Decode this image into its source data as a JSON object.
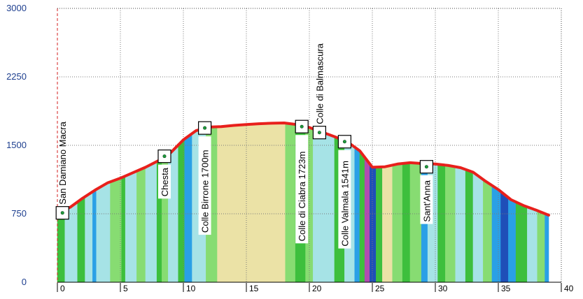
{
  "chart_data": {
    "type": "area",
    "title": "",
    "xlabel": "",
    "ylabel": "",
    "xlim": [
      0,
      40
    ],
    "ylim": [
      0,
      3000
    ],
    "x_ticks": [
      0,
      5,
      10,
      15,
      20,
      25,
      30,
      35,
      40
    ],
    "y_ticks": [
      0,
      750,
      1500,
      2250,
      3000
    ],
    "grid": true,
    "start_marker_x": 0,
    "series": [
      {
        "line_color": "#e8201c",
        "x": [
          0,
          1,
          2,
          3,
          4,
          5,
          6,
          7,
          8,
          9,
          10,
          11,
          12,
          13,
          14,
          15,
          16,
          17,
          18,
          19,
          20,
          21,
          22,
          23,
          24,
          25,
          26,
          27,
          28,
          29,
          30,
          31,
          32,
          33,
          34,
          35,
          36,
          37,
          38,
          39
        ],
        "y": [
          760,
          820,
          920,
          1010,
          1090,
          1140,
          1200,
          1260,
          1330,
          1420,
          1560,
          1660,
          1700,
          1705,
          1718,
          1728,
          1736,
          1742,
          1745,
          1728,
          1695,
          1645,
          1595,
          1540,
          1440,
          1260,
          1265,
          1295,
          1310,
          1300,
          1295,
          1280,
          1255,
          1205,
          1105,
          1015,
          905,
          840,
          790,
          735
        ]
      }
    ],
    "fill_segments": [
      {
        "from": 0,
        "to": 0.6,
        "color": "#3dbf3d"
      },
      {
        "from": 0.6,
        "to": 1.6,
        "color": "#a6e3e6"
      },
      {
        "from": 1.6,
        "to": 2.2,
        "color": "#3dbf3d"
      },
      {
        "from": 2.2,
        "to": 2.8,
        "color": "#a6e3e6"
      },
      {
        "from": 2.8,
        "to": 3.1,
        "color": "#2aa0e6"
      },
      {
        "from": 3.1,
        "to": 4.2,
        "color": "#a6e3e6"
      },
      {
        "from": 4.2,
        "to": 5.1,
        "color": "#87dc72"
      },
      {
        "from": 5.1,
        "to": 5.4,
        "color": "#3dbf3d"
      },
      {
        "from": 5.4,
        "to": 6.3,
        "color": "#a6e3e6"
      },
      {
        "from": 6.3,
        "to": 7.0,
        "color": "#87dc72"
      },
      {
        "from": 7.0,
        "to": 7.9,
        "color": "#a6e3e6"
      },
      {
        "from": 7.9,
        "to": 8.3,
        "color": "#3dbf3d"
      },
      {
        "from": 8.3,
        "to": 8.8,
        "color": "#87dc72"
      },
      {
        "from": 8.8,
        "to": 9.6,
        "color": "#a6e3e6"
      },
      {
        "from": 9.6,
        "to": 10.1,
        "color": "#3dbf3d"
      },
      {
        "from": 10.1,
        "to": 10.7,
        "color": "#2aa0e6"
      },
      {
        "from": 10.7,
        "to": 11.8,
        "color": "#a6e3e6"
      },
      {
        "from": 11.8,
        "to": 12.7,
        "color": "#87dc72"
      },
      {
        "from": 12.7,
        "to": 18.1,
        "color": "#ebe2a6"
      },
      {
        "from": 18.1,
        "to": 18.9,
        "color": "#87dc72"
      },
      {
        "from": 18.9,
        "to": 19.7,
        "color": "#3dbf3d"
      },
      {
        "from": 19.7,
        "to": 20.3,
        "color": "#87dc72"
      },
      {
        "from": 20.3,
        "to": 22.0,
        "color": "#a6e3e6"
      },
      {
        "from": 22.0,
        "to": 22.8,
        "color": "#3dbf3d"
      },
      {
        "from": 22.8,
        "to": 23.6,
        "color": "#a6e3e6"
      },
      {
        "from": 23.6,
        "to": 24.0,
        "color": "#2aa0e6"
      },
      {
        "from": 24.0,
        "to": 24.4,
        "color": "#3dbf3d"
      },
      {
        "from": 24.4,
        "to": 24.8,
        "color": "#b04cb0"
      },
      {
        "from": 24.8,
        "to": 25.3,
        "color": "#1f4fb8"
      },
      {
        "from": 25.3,
        "to": 25.8,
        "color": "#3dbf3d"
      },
      {
        "from": 25.8,
        "to": 26.6,
        "color": "#ebe2a6"
      },
      {
        "from": 26.6,
        "to": 27.4,
        "color": "#87dc72"
      },
      {
        "from": 27.4,
        "to": 28.0,
        "color": "#3dbf3d"
      },
      {
        "from": 28.0,
        "to": 28.9,
        "color": "#87dc72"
      },
      {
        "from": 28.9,
        "to": 29.4,
        "color": "#2aa0e6"
      },
      {
        "from": 29.4,
        "to": 30.2,
        "color": "#a6e3e6"
      },
      {
        "from": 30.2,
        "to": 30.8,
        "color": "#3dbf3d"
      },
      {
        "from": 30.8,
        "to": 31.6,
        "color": "#87dc72"
      },
      {
        "from": 31.6,
        "to": 32.4,
        "color": "#a6e3e6"
      },
      {
        "from": 32.4,
        "to": 33.0,
        "color": "#3dbf3d"
      },
      {
        "from": 33.0,
        "to": 33.8,
        "color": "#a6e3e6"
      },
      {
        "from": 33.8,
        "to": 34.5,
        "color": "#87dc72"
      },
      {
        "from": 34.5,
        "to": 35.2,
        "color": "#2aa0e6"
      },
      {
        "from": 35.2,
        "to": 35.8,
        "color": "#1f4fb8"
      },
      {
        "from": 35.8,
        "to": 36.4,
        "color": "#2aa0e6"
      },
      {
        "from": 36.4,
        "to": 37.3,
        "color": "#3dbf3d"
      },
      {
        "from": 37.3,
        "to": 38.1,
        "color": "#a6e3e6"
      },
      {
        "from": 38.1,
        "to": 38.7,
        "color": "#87dc72"
      },
      {
        "from": 38.7,
        "to": 39.0,
        "color": "#2aa0e6"
      }
    ],
    "waypoints": [
      {
        "x": 0.4,
        "y": 760,
        "label": "San Damiano Macra",
        "placement": "above"
      },
      {
        "x": 8.5,
        "y": 1380,
        "label": "Chesta",
        "placement": "below"
      },
      {
        "x": 11.7,
        "y": 1690,
        "label": "Colle Birrone 1700m",
        "placement": "below"
      },
      {
        "x": 19.4,
        "y": 1705,
        "label": "Colle di Ciabra 1723m",
        "placement": "below"
      },
      {
        "x": 20.8,
        "y": 1640,
        "label": "Colle di Balmascura",
        "placement": "above"
      },
      {
        "x": 22.8,
        "y": 1540,
        "label": "Colle Valmala 1541m",
        "placement": "below"
      },
      {
        "x": 29.3,
        "y": 1265,
        "label": "Sant'Anna",
        "placement": "below"
      }
    ]
  }
}
